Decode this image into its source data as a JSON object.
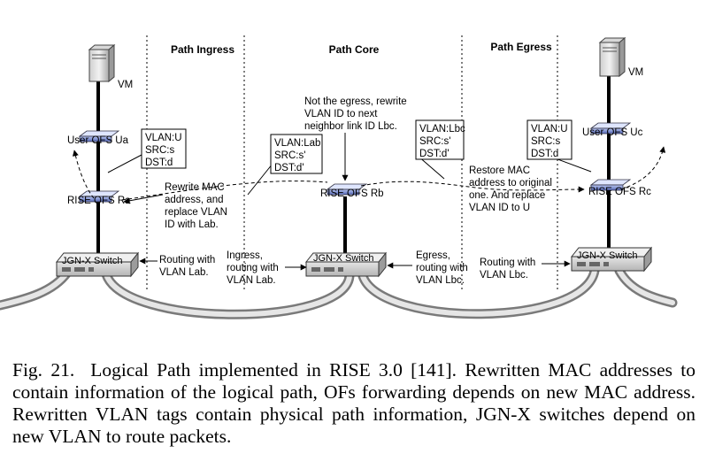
{
  "headers": {
    "ingress": "Path Ingress",
    "core": "Path Core",
    "egress": "Path Egress"
  },
  "vm_left": "VM",
  "vm_right": "VM",
  "nodes": {
    "user_ofs_ua": "User OFS Ua",
    "user_ofs_uc": "User OFS Uc",
    "rise_ofs_ra": "RISE OFS Ra",
    "rise_ofs_rb": "RISE OFS Rb",
    "rise_ofs_rc": "RISE OFS Rc",
    "switch_label": "JGN-X Switch"
  },
  "boxes": {
    "box1": [
      "VLAN:U",
      "SRC:s",
      "DST:d"
    ],
    "box2": [
      "VLAN:Lab",
      "SRC:s'",
      "DST:d'"
    ],
    "box3": [
      "VLAN:Lbc",
      "SRC:s'",
      "DST:d'"
    ],
    "box4": [
      "VLAN:U",
      "SRC:s",
      "DST:d"
    ]
  },
  "notes": {
    "rewrite_mac": [
      "Rewrite MAC",
      "address, and",
      "replace VLAN",
      "ID with Lab."
    ],
    "not_egress": [
      "Not the egress, rewrite",
      "VLAN ID to next",
      "neighbor link ID Lbc."
    ],
    "restore_mac": [
      "Restore MAC",
      "address to original",
      "one. And replace",
      "VLAN ID to U"
    ],
    "routing_lab": [
      "Routing with",
      "VLAN Lab."
    ],
    "ingress_routing": [
      "Ingress,",
      "routing with",
      "VLAN Lab."
    ],
    "egress_routing": [
      "Egress,",
      "routing with",
      "VLAN Lbc."
    ],
    "routing_lbc": [
      "Routing with",
      "VLAN Lbc."
    ]
  },
  "caption": {
    "fig": "Fig. 21.",
    "text": "Logical Path implemented in RISE 3.0 [141]. Rewritten MAC addresses to contain information of the logical path, OFs forwarding depends on new MAC address. Rewritten VLAN tags contain physical path information, JGN-X switches depend on new VLAN to route packets."
  }
}
